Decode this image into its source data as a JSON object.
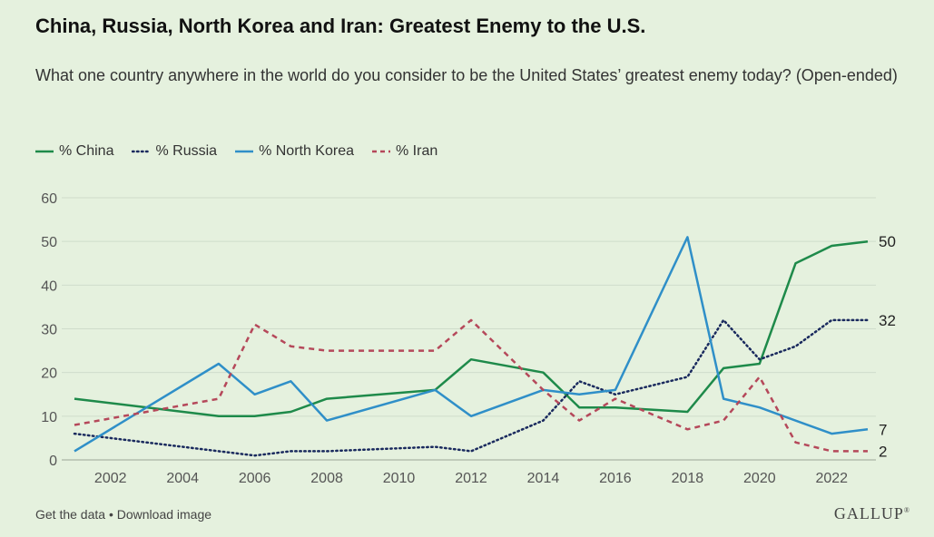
{
  "header": {
    "title": "China, Russia, North Korea and Iran: Greatest Enemy to the U.S.",
    "subtitle": "What one country anywhere in the world do you consider to be the United States’ greatest enemy today? (Open-ended)"
  },
  "footer": {
    "get_data": "Get the data",
    "separator": " • ",
    "download": "Download image",
    "logo": "GALLUP"
  },
  "colors": {
    "china": "#1e8a4a",
    "russia": "#1a2a5e",
    "north_korea": "#2f8fc8",
    "iran": "#b5485a"
  },
  "chart_data": {
    "type": "line",
    "title": "China, Russia, North Korea and Iran: Greatest Enemy to the U.S.",
    "xlabel": "",
    "ylabel": "",
    "xlim": [
      2001,
      2023
    ],
    "ylim": [
      0,
      60
    ],
    "yticks": [
      0,
      10,
      20,
      30,
      40,
      50,
      60
    ],
    "xticks": [
      2002,
      2004,
      2006,
      2008,
      2010,
      2012,
      2014,
      2016,
      2018,
      2020,
      2022
    ],
    "grid": true,
    "legend_position": "top-left",
    "series": [
      {
        "name": "% China",
        "key": "china",
        "style": "solid",
        "end_label": "50",
        "points": [
          [
            2001,
            14
          ],
          [
            2005,
            10
          ],
          [
            2006,
            10
          ],
          [
            2007,
            11
          ],
          [
            2008,
            14
          ],
          [
            2011,
            16
          ],
          [
            2012,
            23
          ],
          [
            2014,
            20
          ],
          [
            2015,
            12
          ],
          [
            2016,
            12
          ],
          [
            2018,
            11
          ],
          [
            2019,
            21
          ],
          [
            2020,
            22
          ],
          [
            2021,
            45
          ],
          [
            2022,
            49
          ],
          [
            2023,
            50
          ]
        ]
      },
      {
        "name": "% Russia",
        "key": "russia",
        "style": "dotted",
        "end_label": "32",
        "points": [
          [
            2001,
            6
          ],
          [
            2005,
            2
          ],
          [
            2006,
            1
          ],
          [
            2007,
            2
          ],
          [
            2008,
            2
          ],
          [
            2011,
            3
          ],
          [
            2012,
            2
          ],
          [
            2014,
            9
          ],
          [
            2015,
            18
          ],
          [
            2016,
            15
          ],
          [
            2018,
            19
          ],
          [
            2019,
            32
          ],
          [
            2020,
            23
          ],
          [
            2021,
            26
          ],
          [
            2022,
            32
          ],
          [
            2023,
            32
          ]
        ]
      },
      {
        "name": "% North Korea",
        "key": "north_korea",
        "style": "solid",
        "end_label": "7",
        "points": [
          [
            2001,
            2
          ],
          [
            2005,
            22
          ],
          [
            2006,
            15
          ],
          [
            2007,
            18
          ],
          [
            2008,
            9
          ],
          [
            2011,
            16
          ],
          [
            2012,
            10
          ],
          [
            2014,
            16
          ],
          [
            2015,
            15
          ],
          [
            2016,
            16
          ],
          [
            2018,
            51
          ],
          [
            2019,
            14
          ],
          [
            2020,
            12
          ],
          [
            2022,
            6
          ],
          [
            2023,
            7
          ]
        ]
      },
      {
        "name": "% Iran",
        "key": "iran",
        "style": "dashed",
        "end_label": "2",
        "points": [
          [
            2001,
            8
          ],
          [
            2005,
            14
          ],
          [
            2006,
            31
          ],
          [
            2007,
            26
          ],
          [
            2008,
            25
          ],
          [
            2011,
            25
          ],
          [
            2012,
            32
          ],
          [
            2014,
            16
          ],
          [
            2015,
            9
          ],
          [
            2016,
            14
          ],
          [
            2018,
            7
          ],
          [
            2019,
            9
          ],
          [
            2020,
            19
          ],
          [
            2021,
            4
          ],
          [
            2022,
            2
          ],
          [
            2023,
            2
          ]
        ]
      }
    ]
  }
}
